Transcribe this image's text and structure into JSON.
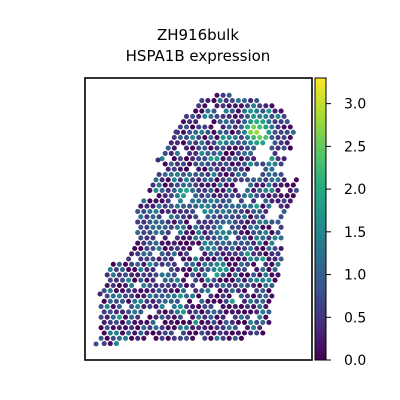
{
  "chart_data": {
    "type": "scatter",
    "title": "ZH916bulk",
    "subtitle": "HSPA1B expression",
    "xlabel": "",
    "ylabel": "",
    "colormap": "viridis",
    "colorbar": {
      "min": 0.0,
      "max": 3.3,
      "ticks": [
        "0.0",
        "0.5",
        "1.0",
        "1.5",
        "2.0",
        "2.5",
        "3.0"
      ],
      "tick_values": [
        0.0,
        0.5,
        1.0,
        1.5,
        2.0,
        2.5,
        3.0
      ]
    },
    "grid": false,
    "axes_ticks_visible": false,
    "spots": [
      {
        "x": 0.5,
        "y": 0.63,
        "value": 3.2
      },
      {
        "x": 0.52,
        "y": 0.6,
        "value": 3.0
      },
      {
        "x": 0.55,
        "y": 0.59,
        "value": 2.8
      },
      {
        "x": 0.53,
        "y": 0.67,
        "value": 2.5
      },
      {
        "x": 0.57,
        "y": 0.63,
        "value": 2.3
      },
      {
        "x": 0.49,
        "y": 0.57,
        "value": 2.2
      },
      {
        "x": 0.51,
        "y": 0.71,
        "value": 2.0
      },
      {
        "x": 0.57,
        "y": 0.54,
        "value": 2.1
      },
      {
        "x": -0.12,
        "y": 0.17,
        "value": 2.4
      },
      {
        "x": 0.05,
        "y": 0.07,
        "value": 1.8
      },
      {
        "x": 0.23,
        "y": -0.12,
        "value": 1.7
      },
      {
        "x": 0.2,
        "y": -0.08,
        "value": 1.6
      },
      {
        "x": 0.29,
        "y": 0.09,
        "value": 1.5
      },
      {
        "x": 0.65,
        "y": 0.35,
        "value": 1.6
      },
      {
        "x": -0.37,
        "y": -0.05,
        "value": 1.4
      },
      {
        "x": -0.3,
        "y": -0.4,
        "value": 1.3
      }
    ],
    "background_distribution": {
      "low": 0.0,
      "typical": 0.6,
      "high": 1.4
    }
  }
}
